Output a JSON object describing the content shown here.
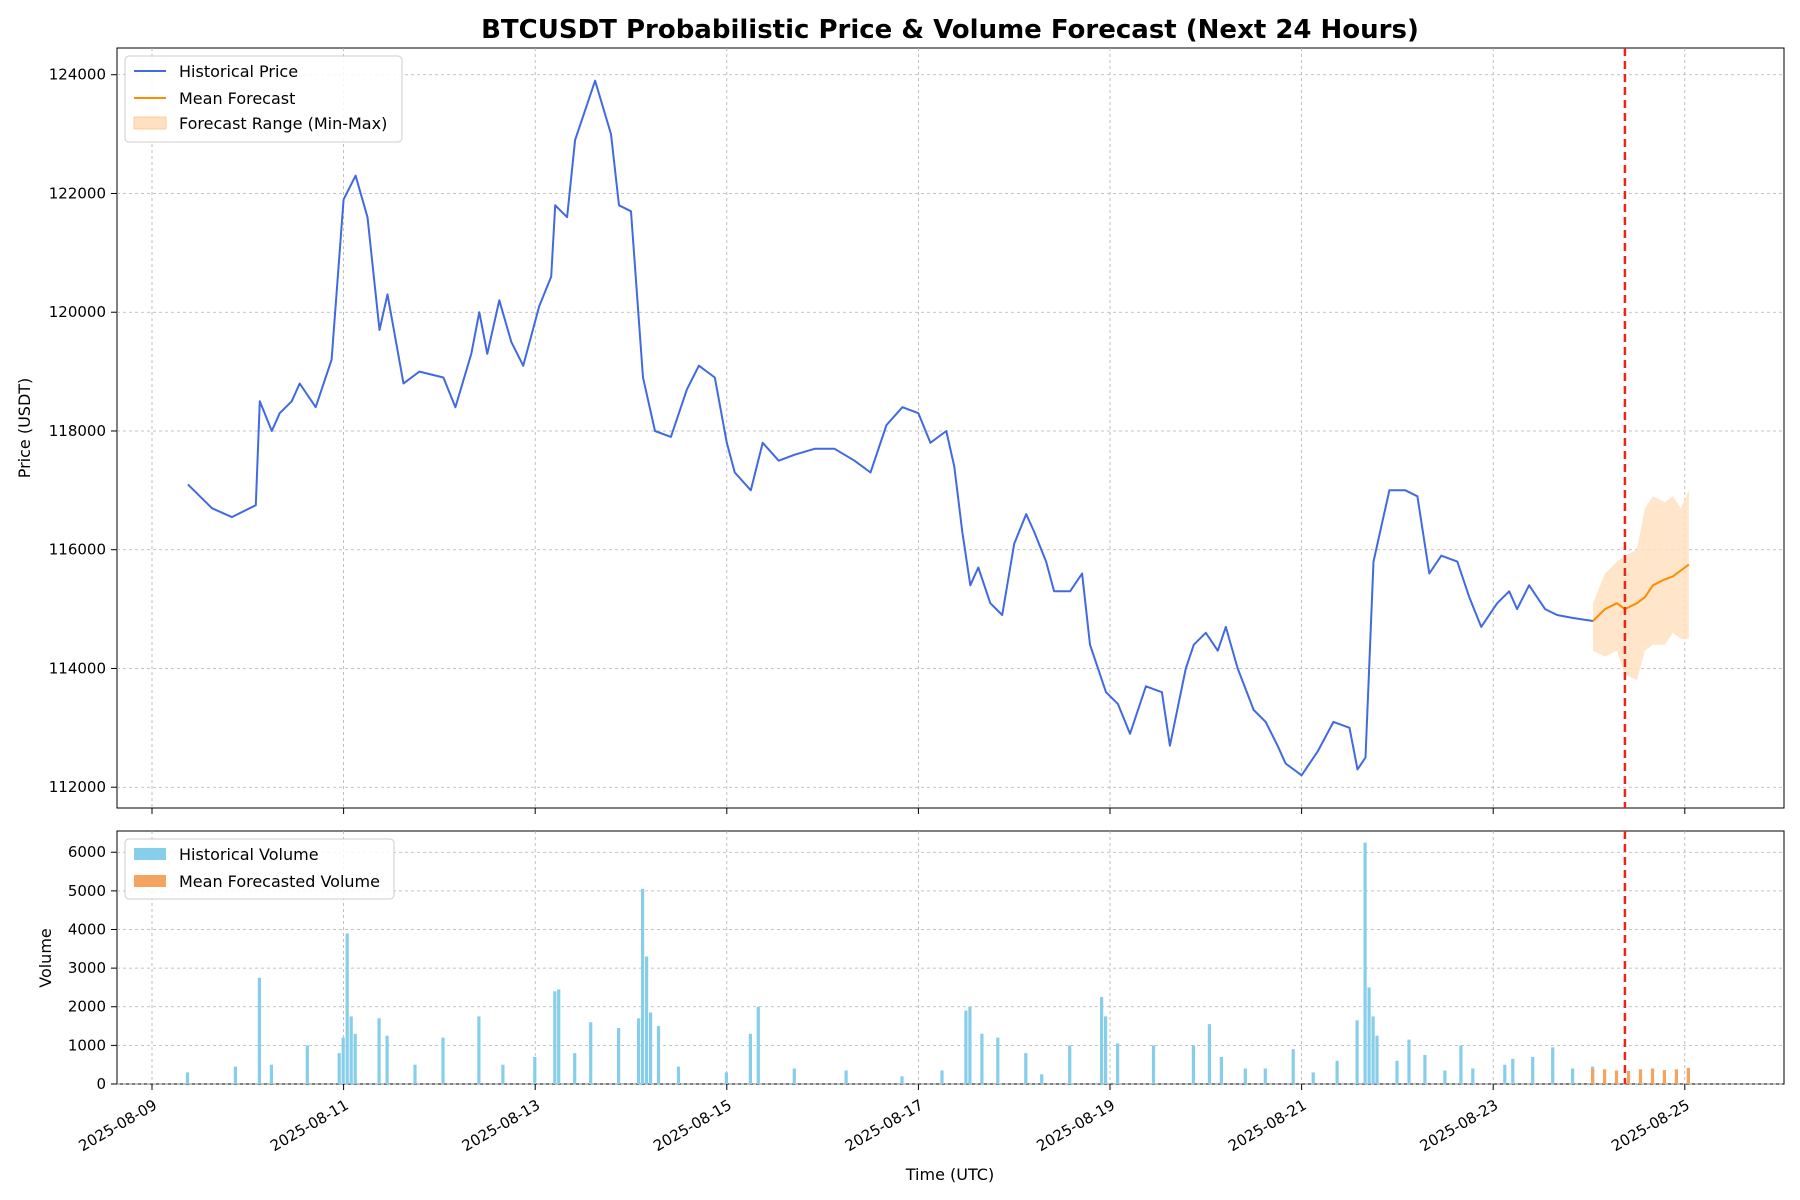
{
  "chart_data": {
    "title": "BTCUSDT Probabilistic Price & Volume Forecast (Next 24 Hours)",
    "xlabel": "Time (UTC)",
    "x_ticks": [
      "2025-08-09",
      "2025-08-11",
      "2025-08-13",
      "2025-08-15",
      "2025-08-17",
      "2025-08-19",
      "2025-08-21",
      "2025-08-23",
      "2025-08-25"
    ],
    "forecast_start": "2025-08-24T09:00",
    "grid": true,
    "colors": {
      "historical_price": "#4169e1",
      "mean_forecast": "#ff8c00",
      "forecast_range": "#ffe0c0",
      "historical_volume": "#87ceeb",
      "forecasted_volume": "#f4a460",
      "forecast_line": "#e8271c"
    },
    "price_panel": {
      "type": "line",
      "ylabel": "Price (USDT)",
      "ylim": [
        111650,
        124450
      ],
      "y_ticks": [
        112000,
        114000,
        116000,
        118000,
        120000,
        122000,
        124000
      ],
      "legend_position": "top-left",
      "legend": [
        "Historical Price",
        "Mean Forecast",
        "Forecast Range (Min-Max)"
      ],
      "historical_price": [
        [
          "2025-08-09T09:00",
          117100
        ],
        [
          "2025-08-09T15:00",
          116700
        ],
        [
          "2025-08-09T20:00",
          116550
        ],
        [
          "2025-08-10T02:00",
          116750
        ],
        [
          "2025-08-10T03:00",
          118500
        ],
        [
          "2025-08-10T06:00",
          118000
        ],
        [
          "2025-08-10T08:00",
          118300
        ],
        [
          "2025-08-10T11:00",
          118500
        ],
        [
          "2025-08-10T13:00",
          118800
        ],
        [
          "2025-08-10T17:00",
          118400
        ],
        [
          "2025-08-10T21:00",
          119200
        ],
        [
          "2025-08-11T00:00",
          121900
        ],
        [
          "2025-08-11T03:00",
          122300
        ],
        [
          "2025-08-11T06:00",
          121600
        ],
        [
          "2025-08-11T09:00",
          119700
        ],
        [
          "2025-08-11T11:00",
          120300
        ],
        [
          "2025-08-11T15:00",
          118800
        ],
        [
          "2025-08-11T19:00",
          119000
        ],
        [
          "2025-08-12T01:00",
          118900
        ],
        [
          "2025-08-12T04:00",
          118400
        ],
        [
          "2025-08-12T08:00",
          119300
        ],
        [
          "2025-08-12T10:00",
          120000
        ],
        [
          "2025-08-12T12:00",
          119300
        ],
        [
          "2025-08-12T15:00",
          120200
        ],
        [
          "2025-08-12T18:00",
          119500
        ],
        [
          "2025-08-12T21:00",
          119100
        ],
        [
          "2025-08-13T01:00",
          120100
        ],
        [
          "2025-08-13T04:00",
          120600
        ],
        [
          "2025-08-13T05:00",
          121800
        ],
        [
          "2025-08-13T08:00",
          121600
        ],
        [
          "2025-08-13T10:00",
          122900
        ],
        [
          "2025-08-13T15:00",
          123900
        ],
        [
          "2025-08-13T19:00",
          123000
        ],
        [
          "2025-08-13T21:00",
          121800
        ],
        [
          "2025-08-14T00:00",
          121700
        ],
        [
          "2025-08-14T03:00",
          118900
        ],
        [
          "2025-08-14T06:00",
          118000
        ],
        [
          "2025-08-14T10:00",
          117900
        ],
        [
          "2025-08-14T14:00",
          118700
        ],
        [
          "2025-08-14T17:00",
          119100
        ],
        [
          "2025-08-14T21:00",
          118900
        ],
        [
          "2025-08-15T00:00",
          117800
        ],
        [
          "2025-08-15T02:00",
          117300
        ],
        [
          "2025-08-15T06:00",
          117000
        ],
        [
          "2025-08-15T09:00",
          117800
        ],
        [
          "2025-08-15T13:00",
          117500
        ],
        [
          "2025-08-15T17:00",
          117600
        ],
        [
          "2025-08-15T22:00",
          117700
        ],
        [
          "2025-08-16T03:00",
          117700
        ],
        [
          "2025-08-16T08:00",
          117500
        ],
        [
          "2025-08-16T12:00",
          117300
        ],
        [
          "2025-08-16T16:00",
          118100
        ],
        [
          "2025-08-16T20:00",
          118400
        ],
        [
          "2025-08-17T00:00",
          118300
        ],
        [
          "2025-08-17T03:00",
          117800
        ],
        [
          "2025-08-17T07:00",
          118000
        ],
        [
          "2025-08-17T09:00",
          117400
        ],
        [
          "2025-08-17T11:00",
          116300
        ],
        [
          "2025-08-17T13:00",
          115400
        ],
        [
          "2025-08-17T15:00",
          115700
        ],
        [
          "2025-08-17T18:00",
          115100
        ],
        [
          "2025-08-17T21:00",
          114900
        ],
        [
          "2025-08-18T00:00",
          116100
        ],
        [
          "2025-08-18T03:00",
          116600
        ],
        [
          "2025-08-18T05:00",
          116300
        ],
        [
          "2025-08-18T08:00",
          115800
        ],
        [
          "2025-08-18T10:00",
          115300
        ],
        [
          "2025-08-18T14:00",
          115300
        ],
        [
          "2025-08-18T17:00",
          115600
        ],
        [
          "2025-08-18T19:00",
          114400
        ],
        [
          "2025-08-18T23:00",
          113600
        ],
        [
          "2025-08-19T02:00",
          113400
        ],
        [
          "2025-08-19T05:00",
          112900
        ],
        [
          "2025-08-19T09:00",
          113700
        ],
        [
          "2025-08-19T13:00",
          113600
        ],
        [
          "2025-08-19T15:00",
          112700
        ],
        [
          "2025-08-19T19:00",
          114000
        ],
        [
          "2025-08-19T21:00",
          114400
        ],
        [
          "2025-08-20T00:00",
          114600
        ],
        [
          "2025-08-20T03:00",
          114300
        ],
        [
          "2025-08-20T05:00",
          114700
        ],
        [
          "2025-08-20T08:00",
          114000
        ],
        [
          "2025-08-20T12:00",
          113300
        ],
        [
          "2025-08-20T15:00",
          113100
        ],
        [
          "2025-08-20T18:00",
          112700
        ],
        [
          "2025-08-20T20:00",
          112400
        ],
        [
          "2025-08-21T00:00",
          112200
        ],
        [
          "2025-08-21T04:00",
          112600
        ],
        [
          "2025-08-21T08:00",
          113100
        ],
        [
          "2025-08-21T12:00",
          113000
        ],
        [
          "2025-08-21T14:00",
          112300
        ],
        [
          "2025-08-21T16:00",
          112500
        ],
        [
          "2025-08-21T18:00",
          115800
        ],
        [
          "2025-08-21T20:00",
          116400
        ],
        [
          "2025-08-21T22:00",
          117000
        ],
        [
          "2025-08-22T02:00",
          117000
        ],
        [
          "2025-08-22T05:00",
          116900
        ],
        [
          "2025-08-22T08:00",
          115600
        ],
        [
          "2025-08-22T11:00",
          115900
        ],
        [
          "2025-08-22T15:00",
          115800
        ],
        [
          "2025-08-22T18:00",
          115200
        ],
        [
          "2025-08-22T21:00",
          114700
        ],
        [
          "2025-08-23T01:00",
          115100
        ],
        [
          "2025-08-23T04:00",
          115300
        ],
        [
          "2025-08-23T06:00",
          115000
        ],
        [
          "2025-08-23T09:00",
          115400
        ],
        [
          "2025-08-23T13:00",
          115000
        ],
        [
          "2025-08-23T16:00",
          114900
        ],
        [
          "2025-08-23T20:00",
          114850
        ],
        [
          "2025-08-24T01:00",
          114800
        ]
      ],
      "mean_forecast": [
        [
          "2025-08-24T01:00",
          114800
        ],
        [
          "2025-08-24T04:00",
          115000
        ],
        [
          "2025-08-24T07:00",
          115100
        ],
        [
          "2025-08-24T09:00",
          115000
        ],
        [
          "2025-08-24T12:00",
          115100
        ],
        [
          "2025-08-24T14:00",
          115200
        ],
        [
          "2025-08-24T16:00",
          115400
        ],
        [
          "2025-08-24T19:00",
          115500
        ],
        [
          "2025-08-24T21:00",
          115550
        ],
        [
          "2025-08-24T23:00",
          115650
        ],
        [
          "2025-08-25T01:00",
          115750
        ]
      ],
      "forecast_range": [
        [
          "2025-08-24T01:00",
          114300,
          115100
        ],
        [
          "2025-08-24T04:00",
          114200,
          115600
        ],
        [
          "2025-08-24T07:00",
          114300,
          115800
        ],
        [
          "2025-08-24T09:00",
          113900,
          115900
        ],
        [
          "2025-08-24T12:00",
          113800,
          116000
        ],
        [
          "2025-08-24T14:00",
          114300,
          116700
        ],
        [
          "2025-08-24T16:00",
          114400,
          116900
        ],
        [
          "2025-08-24T19:00",
          114400,
          116800
        ],
        [
          "2025-08-24T21:00",
          114600,
          116900
        ],
        [
          "2025-08-24T23:00",
          114500,
          116700
        ],
        [
          "2025-08-25T01:00",
          114500,
          117000
        ]
      ]
    },
    "volume_panel": {
      "type": "bar",
      "ylabel": "Volume",
      "ylim": [
        0,
        6550
      ],
      "y_ticks": [
        0,
        1000,
        2000,
        3000,
        4000,
        5000,
        6000
      ],
      "legend_position": "top-left",
      "legend": [
        "Historical Volume",
        "Mean Forecasted Volume"
      ],
      "historical_volume": [
        [
          "2025-08-09T09:00",
          300
        ],
        [
          "2025-08-09T21:00",
          450
        ],
        [
          "2025-08-10T03:00",
          2750
        ],
        [
          "2025-08-10T06:00",
          500
        ],
        [
          "2025-08-10T15:00",
          1000
        ],
        [
          "2025-08-10T23:00",
          800
        ],
        [
          "2025-08-11T00:00",
          1200
        ],
        [
          "2025-08-11T01:00",
          3900
        ],
        [
          "2025-08-11T02:00",
          1750
        ],
        [
          "2025-08-11T03:00",
          1300
        ],
        [
          "2025-08-11T09:00",
          1700
        ],
        [
          "2025-08-11T11:00",
          1250
        ],
        [
          "2025-08-11T18:00",
          500
        ],
        [
          "2025-08-12T01:00",
          1200
        ],
        [
          "2025-08-12T10:00",
          1750
        ],
        [
          "2025-08-12T16:00",
          500
        ],
        [
          "2025-08-13T00:00",
          700
        ],
        [
          "2025-08-13T05:00",
          2400
        ],
        [
          "2025-08-13T06:00",
          2450
        ],
        [
          "2025-08-13T10:00",
          800
        ],
        [
          "2025-08-13T14:00",
          1600
        ],
        [
          "2025-08-13T21:00",
          1450
        ],
        [
          "2025-08-14T02:00",
          1700
        ],
        [
          "2025-08-14T03:00",
          5050
        ],
        [
          "2025-08-14T04:00",
          3300
        ],
        [
          "2025-08-14T05:00",
          1850
        ],
        [
          "2025-08-14T07:00",
          1500
        ],
        [
          "2025-08-14T12:00",
          450
        ],
        [
          "2025-08-15T00:00",
          300
        ],
        [
          "2025-08-15T06:00",
          1300
        ],
        [
          "2025-08-15T08:00",
          2000
        ],
        [
          "2025-08-15T17:00",
          400
        ],
        [
          "2025-08-16T06:00",
          350
        ],
        [
          "2025-08-16T20:00",
          200
        ],
        [
          "2025-08-17T06:00",
          350
        ],
        [
          "2025-08-17T12:00",
          1900
        ],
        [
          "2025-08-17T13:00",
          2000
        ],
        [
          "2025-08-17T16:00",
          1300
        ],
        [
          "2025-08-17T20:00",
          1200
        ],
        [
          "2025-08-18T03:00",
          800
        ],
        [
          "2025-08-18T07:00",
          250
        ],
        [
          "2025-08-18T14:00",
          1000
        ],
        [
          "2025-08-18T22:00",
          2250
        ],
        [
          "2025-08-18T23:00",
          1750
        ],
        [
          "2025-08-19T02:00",
          1050
        ],
        [
          "2025-08-19T11:00",
          1000
        ],
        [
          "2025-08-19T21:00",
          1000
        ],
        [
          "2025-08-20T01:00",
          1550
        ],
        [
          "2025-08-20T04:00",
          700
        ],
        [
          "2025-08-20T10:00",
          400
        ],
        [
          "2025-08-20T15:00",
          400
        ],
        [
          "2025-08-20T22:00",
          900
        ],
        [
          "2025-08-21T03:00",
          300
        ],
        [
          "2025-08-21T09:00",
          600
        ],
        [
          "2025-08-21T14:00",
          1650
        ],
        [
          "2025-08-21T16:00",
          6250
        ],
        [
          "2025-08-21T17:00",
          2500
        ],
        [
          "2025-08-21T18:00",
          1750
        ],
        [
          "2025-08-21T19:00",
          1250
        ],
        [
          "2025-08-22T00:00",
          600
        ],
        [
          "2025-08-22T03:00",
          1150
        ],
        [
          "2025-08-22T07:00",
          750
        ],
        [
          "2025-08-22T12:00",
          350
        ],
        [
          "2025-08-22T16:00",
          1000
        ],
        [
          "2025-08-22T19:00",
          400
        ],
        [
          "2025-08-23T03:00",
          500
        ],
        [
          "2025-08-23T05:00",
          650
        ],
        [
          "2025-08-23T10:00",
          700
        ],
        [
          "2025-08-23T15:00",
          950
        ],
        [
          "2025-08-23T20:00",
          400
        ],
        [
          "2025-08-24T01:00",
          450
        ]
      ],
      "mean_forecasted_volume": [
        [
          "2025-08-24T01:00",
          400
        ],
        [
          "2025-08-24T04:00",
          380
        ],
        [
          "2025-08-24T07:00",
          350
        ],
        [
          "2025-08-24T10:00",
          340
        ],
        [
          "2025-08-24T13:00",
          380
        ],
        [
          "2025-08-24T16:00",
          400
        ],
        [
          "2025-08-24T19:00",
          360
        ],
        [
          "2025-08-24T22:00",
          380
        ],
        [
          "2025-08-25T01:00",
          420
        ]
      ]
    }
  }
}
